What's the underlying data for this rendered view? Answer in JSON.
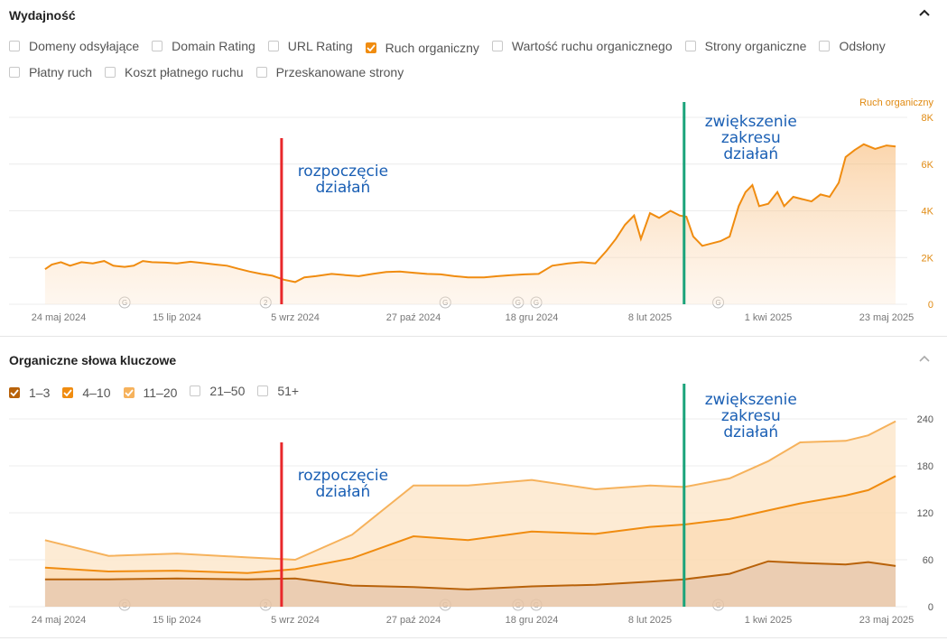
{
  "performance": {
    "title": "Wydajność",
    "options_row1": [
      {
        "label": "Domeny odsyłające",
        "checked": false
      },
      {
        "label": "Domain Rating",
        "checked": false
      },
      {
        "label": "URL Rating",
        "checked": false
      },
      {
        "label": "Ruch organiczny",
        "checked": true
      },
      {
        "label": "Wartość ruchu organicznego",
        "checked": false
      },
      {
        "label": "Strony organiczne",
        "checked": false
      },
      {
        "label": "Odsłony",
        "checked": false
      }
    ],
    "options_row2": [
      {
        "label": "Płatny ruch",
        "checked": false
      },
      {
        "label": "Koszt płatnego ruchu",
        "checked": false
      },
      {
        "label": "Przeskanowane strony",
        "checked": false
      }
    ]
  },
  "keywords": {
    "title": "Organiczne słowa kluczowe",
    "options": [
      {
        "label": "1–3",
        "checked": true,
        "color": "#b8620a"
      },
      {
        "label": "4–10",
        "checked": true,
        "color": "#f08c10"
      },
      {
        "label": "11–20",
        "checked": true,
        "color": "#f6b25c"
      },
      {
        "label": "21–50",
        "checked": false
      },
      {
        "label": "51+",
        "checked": false
      }
    ]
  },
  "annotations": {
    "start": [
      "rozpoczęcie",
      "działań"
    ],
    "expand": [
      "zwiększenie",
      "zakresu",
      "działań"
    ],
    "start_date": "2024-08-30",
    "expand_date": "2025-02-23",
    "start_color": "#e8282b",
    "expand_color": "#1aa37a"
  },
  "chart_data": [
    {
      "type": "area",
      "series_name": "Ruch organiczny",
      "color": "#f08c10",
      "x_ticks": [
        "24 maj 2024",
        "15 lip 2024",
        "5 wrz 2024",
        "27 paź 2024",
        "18 gru 2024",
        "8 lut 2025",
        "1 kwi 2025",
        "23 maj 2025"
      ],
      "x_tick_dates": [
        "2024-05-24",
        "2024-07-15",
        "2024-09-05",
        "2024-10-27",
        "2024-12-18",
        "2025-02-08",
        "2025-04-01",
        "2025-05-23"
      ],
      "y_ticks": [
        "0",
        "2K",
        "4K",
        "6K",
        "8K"
      ],
      "ylim": [
        0,
        8000
      ],
      "grid": true,
      "markers": [
        {
          "date": "2024-06-22",
          "label": "G"
        },
        {
          "date": "2024-08-23",
          "label": "2"
        },
        {
          "date": "2024-11-10",
          "label": "G"
        },
        {
          "date": "2024-12-12",
          "label": "G"
        },
        {
          "date": "2024-12-20",
          "label": "G"
        },
        {
          "date": "2025-03-10",
          "label": "G"
        }
      ],
      "points": [
        [
          "2024-05-18",
          1500
        ],
        [
          "2024-05-21",
          1700
        ],
        [
          "2024-05-25",
          1800
        ],
        [
          "2024-05-29",
          1650
        ],
        [
          "2024-06-03",
          1800
        ],
        [
          "2024-06-08",
          1750
        ],
        [
          "2024-06-13",
          1850
        ],
        [
          "2024-06-17",
          1650
        ],
        [
          "2024-06-22",
          1600
        ],
        [
          "2024-06-26",
          1650
        ],
        [
          "2024-06-30",
          1850
        ],
        [
          "2024-07-04",
          1800
        ],
        [
          "2024-07-10",
          1780
        ],
        [
          "2024-07-15",
          1750
        ],
        [
          "2024-07-21",
          1820
        ],
        [
          "2024-07-27",
          1760
        ],
        [
          "2024-08-01",
          1700
        ],
        [
          "2024-08-06",
          1650
        ],
        [
          "2024-08-11",
          1520
        ],
        [
          "2024-08-16",
          1400
        ],
        [
          "2024-08-21",
          1300
        ],
        [
          "2024-08-26",
          1220
        ],
        [
          "2024-08-31",
          1050
        ],
        [
          "2024-09-05",
          950
        ],
        [
          "2024-09-09",
          1150
        ],
        [
          "2024-09-14",
          1200
        ],
        [
          "2024-09-21",
          1300
        ],
        [
          "2024-09-27",
          1250
        ],
        [
          "2024-10-03",
          1200
        ],
        [
          "2024-10-09",
          1300
        ],
        [
          "2024-10-15",
          1380
        ],
        [
          "2024-10-21",
          1400
        ],
        [
          "2024-10-27",
          1350
        ],
        [
          "2024-11-02",
          1300
        ],
        [
          "2024-11-08",
          1280
        ],
        [
          "2024-11-14",
          1200
        ],
        [
          "2024-11-20",
          1150
        ],
        [
          "2024-11-27",
          1150
        ],
        [
          "2024-12-03",
          1200
        ],
        [
          "2024-12-09",
          1250
        ],
        [
          "2024-12-15",
          1280
        ],
        [
          "2024-12-21",
          1300
        ],
        [
          "2024-12-27",
          1650
        ],
        [
          "2025-01-03",
          1750
        ],
        [
          "2025-01-09",
          1800
        ],
        [
          "2025-01-15",
          1750
        ],
        [
          "2025-01-20",
          2300
        ],
        [
          "2025-01-24",
          2800
        ],
        [
          "2025-01-28",
          3400
        ],
        [
          "2025-02-01",
          3800
        ],
        [
          "2025-02-04",
          2800
        ],
        [
          "2025-02-08",
          3900
        ],
        [
          "2025-02-12",
          3700
        ],
        [
          "2025-02-17",
          4000
        ],
        [
          "2025-02-21",
          3800
        ],
        [
          "2025-02-24",
          3750
        ],
        [
          "2025-02-27",
          2900
        ],
        [
          "2025-03-03",
          2500
        ],
        [
          "2025-03-07",
          2600
        ],
        [
          "2025-03-11",
          2700
        ],
        [
          "2025-03-15",
          2900
        ],
        [
          "2025-03-19",
          4200
        ],
        [
          "2025-03-22",
          4800
        ],
        [
          "2025-03-25",
          5100
        ],
        [
          "2025-03-28",
          4200
        ],
        [
          "2025-04-01",
          4300
        ],
        [
          "2025-04-05",
          4800
        ],
        [
          "2025-04-08",
          4200
        ],
        [
          "2025-04-12",
          4600
        ],
        [
          "2025-04-16",
          4500
        ],
        [
          "2025-04-20",
          4400
        ],
        [
          "2025-04-24",
          4700
        ],
        [
          "2025-04-28",
          4600
        ],
        [
          "2025-05-02",
          5200
        ],
        [
          "2025-05-05",
          6300
        ],
        [
          "2025-05-09",
          6600
        ],
        [
          "2025-05-13",
          6850
        ],
        [
          "2025-05-18",
          6650
        ],
        [
          "2025-05-23",
          6800
        ],
        [
          "2025-05-27",
          6750
        ]
      ]
    },
    {
      "type": "area",
      "x_ticks": [
        "24 maj 2024",
        "15 lip 2024",
        "5 wrz 2024",
        "27 paź 2024",
        "18 gru 2024",
        "8 lut 2025",
        "1 kwi 2025",
        "23 maj 2025"
      ],
      "x_tick_dates": [
        "2024-05-24",
        "2024-07-15",
        "2024-09-05",
        "2024-10-27",
        "2024-12-18",
        "2025-02-08",
        "2025-04-01",
        "2025-05-23"
      ],
      "y_ticks": [
        "0",
        "60",
        "120",
        "180",
        "240"
      ],
      "ylim": [
        0,
        240
      ],
      "grid": true,
      "stacked": true,
      "markers": [
        {
          "date": "2024-06-22",
          "label": "G"
        },
        {
          "date": "2024-08-23",
          "label": "2"
        },
        {
          "date": "2024-11-10",
          "label": "G"
        },
        {
          "date": "2024-12-12",
          "label": "G"
        },
        {
          "date": "2024-12-20",
          "label": "G"
        },
        {
          "date": "2025-03-10",
          "label": "G"
        }
      ],
      "series": [
        {
          "name": "1–3",
          "color": "#b8620a",
          "fill": "#e7c4a4",
          "points": [
            [
              "2024-05-18",
              35
            ],
            [
              "2024-06-15",
              35
            ],
            [
              "2024-07-15",
              36
            ],
            [
              "2024-08-15",
              35
            ],
            [
              "2024-09-05",
              36
            ],
            [
              "2024-09-30",
              27
            ],
            [
              "2024-10-27",
              25
            ],
            [
              "2024-11-20",
              22
            ],
            [
              "2024-12-18",
              26
            ],
            [
              "2025-01-15",
              28
            ],
            [
              "2025-02-08",
              32
            ],
            [
              "2025-02-23",
              35
            ],
            [
              "2025-03-15",
              42
            ],
            [
              "2025-04-01",
              58
            ],
            [
              "2025-04-15",
              56
            ],
            [
              "2025-05-05",
              54
            ],
            [
              "2025-05-15",
              57
            ],
            [
              "2025-05-27",
              52
            ]
          ]
        },
        {
          "name": "4–10",
          "color": "#f08c10",
          "fill": "#fbd9b0",
          "points": [
            [
              "2024-05-18",
              15
            ],
            [
              "2024-06-15",
              10
            ],
            [
              "2024-07-15",
              10
            ],
            [
              "2024-08-15",
              8
            ],
            [
              "2024-09-05",
              12
            ],
            [
              "2024-09-30",
              35
            ],
            [
              "2024-10-27",
              65
            ],
            [
              "2024-11-20",
              63
            ],
            [
              "2024-12-18",
              70
            ],
            [
              "2025-01-15",
              65
            ],
            [
              "2025-02-08",
              70
            ],
            [
              "2025-02-23",
              70
            ],
            [
              "2025-03-15",
              70
            ],
            [
              "2025-04-01",
              65
            ],
            [
              "2025-04-15",
              76
            ],
            [
              "2025-05-05",
              88
            ],
            [
              "2025-05-15",
              92
            ],
            [
              "2025-05-27",
              115
            ]
          ]
        },
        {
          "name": "11–20",
          "color": "#f6b25c",
          "fill": "#fde7cc",
          "points": [
            [
              "2024-05-18",
              35
            ],
            [
              "2024-06-15",
              20
            ],
            [
              "2024-07-15",
              22
            ],
            [
              "2024-08-15",
              20
            ],
            [
              "2024-09-05",
              12
            ],
            [
              "2024-09-30",
              30
            ],
            [
              "2024-10-27",
              65
            ],
            [
              "2024-11-20",
              70
            ],
            [
              "2024-12-18",
              66
            ],
            [
              "2025-01-15",
              57
            ],
            [
              "2025-02-08",
              53
            ],
            [
              "2025-02-23",
              48
            ],
            [
              "2025-03-15",
              52
            ],
            [
              "2025-04-01",
              63
            ],
            [
              "2025-04-15",
              78
            ],
            [
              "2025-05-05",
              70
            ],
            [
              "2025-05-15",
              70
            ],
            [
              "2025-05-27",
              70
            ]
          ]
        }
      ]
    }
  ]
}
